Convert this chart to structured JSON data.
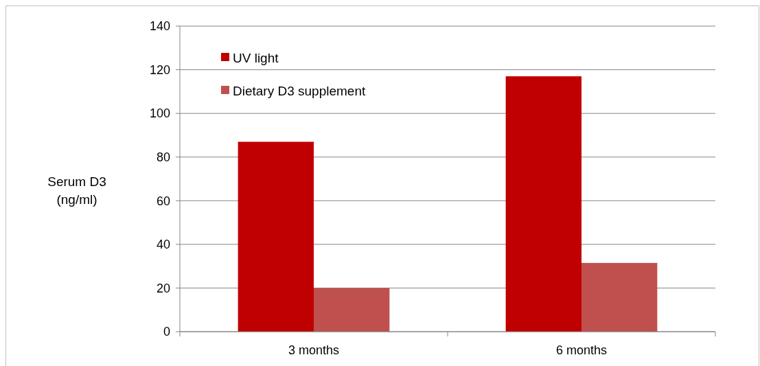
{
  "chart_data": {
    "type": "bar",
    "ylabel": "Serum D3 (ng/ml)",
    "categories": [
      "3 months",
      "6 months"
    ],
    "series": [
      {
        "name": "UV light",
        "color": "#c00000",
        "values": [
          87,
          117
        ]
      },
      {
        "name": "Dietary D3 supplement",
        "color": "#c0504d",
        "values": [
          20,
          31.5
        ]
      }
    ],
    "ylim": [
      0,
      140
    ],
    "yticks": [
      0,
      20,
      40,
      60,
      80,
      100,
      120,
      140
    ],
    "grid": "y",
    "legend": "top left"
  }
}
